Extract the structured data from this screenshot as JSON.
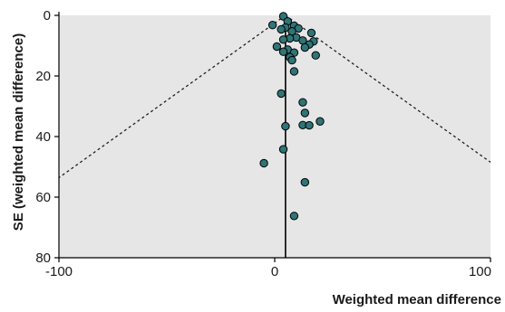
{
  "chart_data": {
    "type": "scatter",
    "subtype": "funnel plot",
    "xlabel": "Weighted mean difference",
    "ylabel": "SE (weighted mean difference)",
    "xlim": [
      -100,
      100
    ],
    "ylim": [
      0,
      80
    ],
    "y_reversed": true,
    "x_ticks": [
      -100,
      0,
      100
    ],
    "x_tick_labels": [
      "-100",
      "0",
      "100"
    ],
    "y_ticks": [
      0,
      20,
      40,
      60,
      80
    ],
    "y_tick_labels": [
      "0",
      "20",
      "40",
      "60",
      "80"
    ],
    "grid": false,
    "background_color": "#e6e6e6",
    "point_color": "#2f7477",
    "pooled_estimate": 5,
    "funnel_lines": "dashed 95% confidence limits diverging from the pooled estimate",
    "points": [
      {
        "x": 4,
        "y": 0.3
      },
      {
        "x": 6,
        "y": 2.0
      },
      {
        "x": -1,
        "y": 3.2
      },
      {
        "x": 5,
        "y": 4.0
      },
      {
        "x": 9,
        "y": 3.4
      },
      {
        "x": 11,
        "y": 4.3
      },
      {
        "x": 3,
        "y": 4.6
      },
      {
        "x": 8,
        "y": 5.3
      },
      {
        "x": 17,
        "y": 5.8
      },
      {
        "x": 10,
        "y": 7.3
      },
      {
        "x": 7,
        "y": 7.6
      },
      {
        "x": 4,
        "y": 8.0
      },
      {
        "x": 13,
        "y": 8.3
      },
      {
        "x": 18,
        "y": 8.6
      },
      {
        "x": 16,
        "y": 9.6
      },
      {
        "x": 1,
        "y": 10.3
      },
      {
        "x": 14,
        "y": 10.6
      },
      {
        "x": 6,
        "y": 11.3
      },
      {
        "x": 4,
        "y": 12.0
      },
      {
        "x": 9,
        "y": 12.3
      },
      {
        "x": 19,
        "y": 13.2
      },
      {
        "x": 7,
        "y": 13.8
      },
      {
        "x": 8,
        "y": 14.8
      },
      {
        "x": 9,
        "y": 18.5
      },
      {
        "x": 3,
        "y": 25.8
      },
      {
        "x": 13,
        "y": 28.7
      },
      {
        "x": 14,
        "y": 32.2
      },
      {
        "x": 21,
        "y": 35.0
      },
      {
        "x": 13,
        "y": 36.2
      },
      {
        "x": 16,
        "y": 36.3
      },
      {
        "x": 5,
        "y": 36.6
      },
      {
        "x": 4,
        "y": 44.2
      },
      {
        "x": -5,
        "y": 48.8
      },
      {
        "x": 14,
        "y": 55.1
      },
      {
        "x": 9,
        "y": 66.2
      }
    ]
  }
}
